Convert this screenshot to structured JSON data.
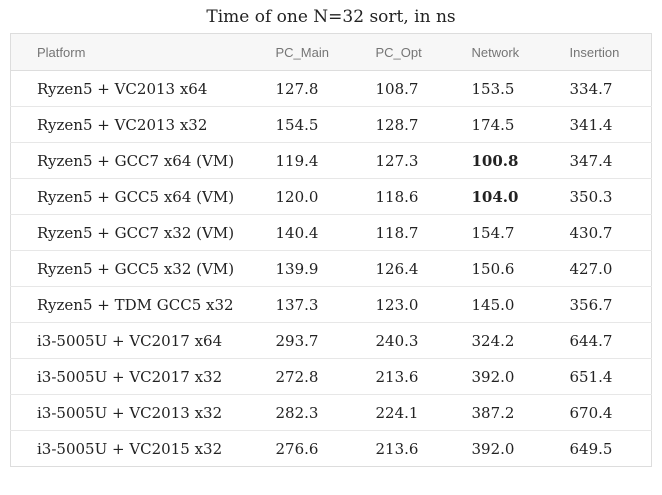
{
  "chart_data": {
    "type": "table",
    "title": "Time of one N=32 sort, in ns",
    "columns": [
      "Platform",
      "PC_Main",
      "PC_Opt",
      "Network",
      "Insertion"
    ],
    "rows": [
      [
        "Ryzen5 + VC2013 x64",
        127.8,
        108.7,
        153.5,
        334.7
      ],
      [
        "Ryzen5 + VC2013 x32",
        154.5,
        128.7,
        174.5,
        341.4
      ],
      [
        "Ryzen5 + GCC7 x64 (VM)",
        119.4,
        127.3,
        100.8,
        347.4
      ],
      [
        "Ryzen5 + GCC5 x64 (VM)",
        120.0,
        118.6,
        104.0,
        350.3
      ],
      [
        "Ryzen5 + GCC7 x32 (VM)",
        140.4,
        118.7,
        154.7,
        430.7
      ],
      [
        "Ryzen5 + GCC5 x32 (VM)",
        139.9,
        126.4,
        150.6,
        427.0
      ],
      [
        "Ryzen5 + TDM GCC5 x32",
        137.3,
        123.0,
        145.0,
        356.7
      ],
      [
        "i3-5005U + VC2017 x64",
        293.7,
        240.3,
        324.2,
        644.7
      ],
      [
        "i3-5005U + VC2017 x32",
        272.8,
        213.6,
        392.0,
        651.4
      ],
      [
        "i3-5005U + VC2013 x32",
        282.3,
        224.1,
        387.2,
        670.4
      ],
      [
        "i3-5005U + VC2015 x32",
        276.6,
        213.6,
        392.0,
        649.5
      ]
    ],
    "bold_cells": [
      [
        2,
        3
      ],
      [
        3,
        3
      ]
    ],
    "layout": {
      "grid": "horizontal-row-separators-only",
      "header_aligned": "left",
      "values_decimals": 1
    }
  },
  "colors": {
    "title-color": "#222222",
    "header-bg": "#f7f7f7",
    "header-text": "#757575",
    "body-text": "#222222",
    "border-outer": "#dddddd",
    "border-row": "#e7e7e7"
  }
}
